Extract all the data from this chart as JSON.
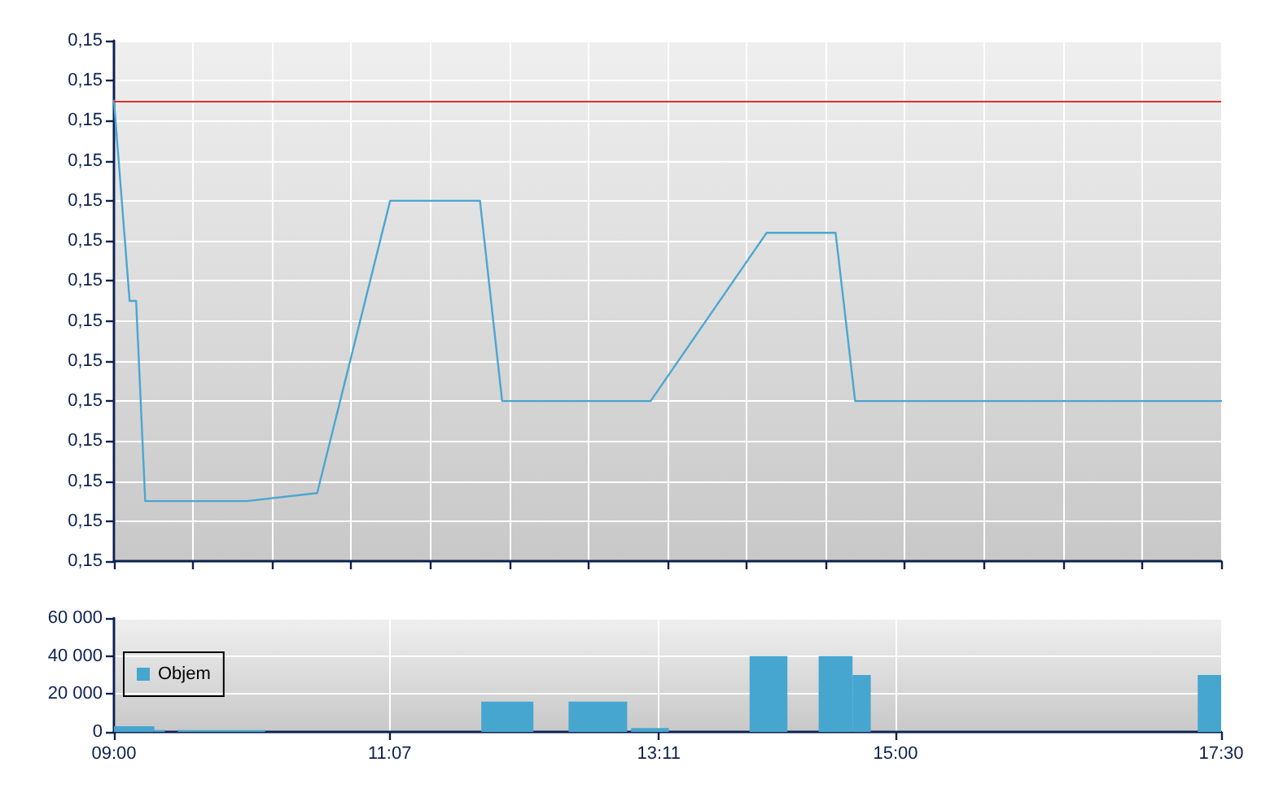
{
  "chart_data": [
    {
      "type": "line",
      "x": [
        9,
        9.12,
        9.17,
        9.24,
        10.02,
        10.56,
        11.12,
        11.81,
        11.98,
        13.12,
        14.01,
        14.54,
        14.69,
        17.5
      ],
      "values": [
        0.15055,
        0.15005,
        0.15005,
        0.14955,
        0.14955,
        0.14957,
        0.1503,
        0.1503,
        0.1498,
        0.1498,
        0.15022,
        0.15022,
        0.1498,
        0.1498
      ],
      "color": "#4aa6d2",
      "marker": "none",
      "xlim": [
        9,
        17.5
      ],
      "xticks": [
        {
          "value": 9,
          "label": null
        },
        {
          "value": 9.607,
          "label": null
        },
        {
          "value": 10.214,
          "label": null
        },
        {
          "value": 10.821,
          "label": null
        },
        {
          "value": 11.429,
          "label": null
        },
        {
          "value": 12.036,
          "label": null
        },
        {
          "value": 12.643,
          "label": null
        },
        {
          "value": 13.25,
          "label": null
        },
        {
          "value": 13.857,
          "label": null
        },
        {
          "value": 14.464,
          "label": null
        },
        {
          "value": 15.071,
          "label": null
        },
        {
          "value": 15.679,
          "label": null
        },
        {
          "value": 16.286,
          "label": null
        },
        {
          "value": 16.893,
          "label": null
        },
        {
          "value": 17.5,
          "label": null
        }
      ],
      "ylim": [
        0.1494,
        0.1507
      ],
      "yticks": [
        {
          "value": 0.1494,
          "label": "0,15"
        },
        {
          "value": 0.1495,
          "label": "0,15"
        },
        {
          "value": 0.1496,
          "label": "0,15"
        },
        {
          "value": 0.1497,
          "label": "0,15"
        },
        {
          "value": 0.1498,
          "label": "0,15"
        },
        {
          "value": 0.1499,
          "label": "0,15"
        },
        {
          "value": 0.15,
          "label": "0,15"
        },
        {
          "value": 0.1501,
          "label": "0,15"
        },
        {
          "value": 0.1502,
          "label": "0,15"
        },
        {
          "value": 0.1503,
          "label": "0,15"
        },
        {
          "value": 0.1504,
          "label": "0,15"
        },
        {
          "value": 0.1505,
          "label": "0,15"
        },
        {
          "value": 0.1506,
          "label": "0,15"
        },
        {
          "value": 0.1507,
          "label": "0,15"
        }
      ],
      "ref_lines": [
        {
          "axis": "y",
          "value": 0.15055,
          "color": "#e0302a"
        }
      ],
      "grid": true,
      "tick_labels": "y"
    },
    {
      "type": "histogram",
      "bins": [
        9,
        9.31,
        9.39,
        9.49,
        10.16,
        11.82,
        12.22,
        12.49,
        12.94,
        12.97,
        13.26,
        13.88,
        14.17,
        14.41,
        14.67,
        14.81,
        17.32,
        17.5
      ],
      "series": [
        {
          "name": "Objem",
          "color": "#46a6cf",
          "values": [
            3000,
            1000,
            null,
            1000,
            null,
            16000,
            null,
            16000,
            null,
            2000,
            null,
            40000,
            null,
            40000,
            30000,
            null,
            30000
          ]
        }
      ],
      "xlim": [
        9,
        17.5
      ],
      "xticks": [
        {
          "value": 9,
          "label": "09:00"
        },
        {
          "value": 11.117,
          "label": "11:07"
        },
        {
          "value": 13.183,
          "label": "13:11"
        },
        {
          "value": 15,
          "label": "15:00"
        },
        {
          "value": 17.5,
          "label": "17:30"
        }
      ],
      "ylim": [
        0,
        60000
      ],
      "yticks": [
        0,
        {
          "value": 20000,
          "label": "20 000"
        },
        {
          "value": 40000,
          "label": "40 000"
        },
        {
          "value": 60000,
          "label": "60 000"
        }
      ],
      "grid": true,
      "legend": "left"
    }
  ]
}
